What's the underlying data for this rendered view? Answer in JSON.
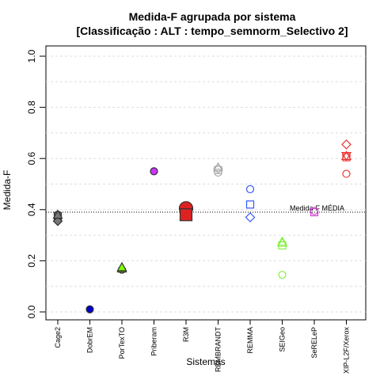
{
  "chart_data": {
    "type": "scatter",
    "title": "Medida-F agrupada por sistema",
    "subtitle": "[Classificação : ALT : tempo_semnorm_Selectivo 2]",
    "xlabel": "Sistemas",
    "ylabel": "Medida-F",
    "ylim": [
      0.0,
      1.0
    ],
    "yticks": [
      "0.0",
      "0.2",
      "0.4",
      "0.6",
      "0.8",
      "1.0"
    ],
    "grid": true,
    "reference_line": {
      "label": "Medida-F MÉDIA",
      "value": 0.39
    },
    "categories": [
      "Cage2",
      "DobrEM",
      "PorTexTO",
      "Priberam",
      "R3M",
      "REMBRANDT",
      "REMMA",
      "SEIGeo",
      "SeRELeP",
      "XIP-L2F/Xerox"
    ],
    "series": [
      {
        "category": "Cage2",
        "color": "#777777",
        "filled": true,
        "points": [
          {
            "y": 0.38,
            "shape": "circle"
          },
          {
            "y": 0.375,
            "shape": "square"
          },
          {
            "y": 0.355,
            "shape": "diamond"
          },
          {
            "y": 0.38,
            "shape": "triangle"
          }
        ]
      },
      {
        "category": "DobrEM",
        "color": "#0000cc",
        "filled": true,
        "points": [
          {
            "y": 0.01,
            "shape": "circle"
          }
        ]
      },
      {
        "category": "PorTexTO",
        "color": "#7fff00",
        "filled": true,
        "points": [
          {
            "y": 0.165,
            "shape": "circle"
          },
          {
            "y": 0.17,
            "shape": "triangle"
          },
          {
            "y": 0.175,
            "shape": "triangle"
          }
        ]
      },
      {
        "category": "Priberam",
        "color": "#cc33ff",
        "filled": true,
        "points": [
          {
            "y": 0.55,
            "shape": "circle"
          }
        ]
      },
      {
        "category": "R3M",
        "color": "#dd2222",
        "filled": true,
        "points": [
          {
            "y": 0.405,
            "shape": "big-circle"
          },
          {
            "y": 0.38,
            "shape": "big-square"
          }
        ]
      },
      {
        "category": "REMBRANDT",
        "color": "#aaaaaa",
        "filled": false,
        "points": [
          {
            "y": 0.545,
            "shape": "circle"
          },
          {
            "y": 0.555,
            "shape": "square"
          },
          {
            "y": 0.56,
            "shape": "diamond"
          },
          {
            "y": 0.565,
            "shape": "triangle"
          }
        ]
      },
      {
        "category": "REMMA",
        "color": "#3355ff",
        "filled": false,
        "points": [
          {
            "y": 0.48,
            "shape": "circle"
          },
          {
            "y": 0.42,
            "shape": "square"
          },
          {
            "y": 0.37,
            "shape": "diamond"
          }
        ]
      },
      {
        "category": "SEIGeo",
        "color": "#88ee44",
        "filled": false,
        "points": [
          {
            "y": 0.145,
            "shape": "circle"
          },
          {
            "y": 0.26,
            "shape": "square"
          },
          {
            "y": 0.275,
            "shape": "triangle"
          },
          {
            "y": 0.27,
            "shape": "triangle"
          }
        ]
      },
      {
        "category": "SeRELeP",
        "color": "#cc44cc",
        "filled": false,
        "points": [
          {
            "y": 0.39,
            "shape": "square"
          },
          {
            "y": 0.395,
            "shape": "circle"
          }
        ]
      },
      {
        "category": "XIP-L2F/Xerox",
        "color": "#ee3333",
        "filled": false,
        "points": [
          {
            "y": 0.54,
            "shape": "circle"
          },
          {
            "y": 0.605,
            "shape": "square"
          },
          {
            "y": 0.655,
            "shape": "diamond"
          },
          {
            "y": 0.61,
            "shape": "triangle"
          },
          {
            "y": 0.61,
            "shape": "triangle-down"
          }
        ]
      }
    ]
  }
}
